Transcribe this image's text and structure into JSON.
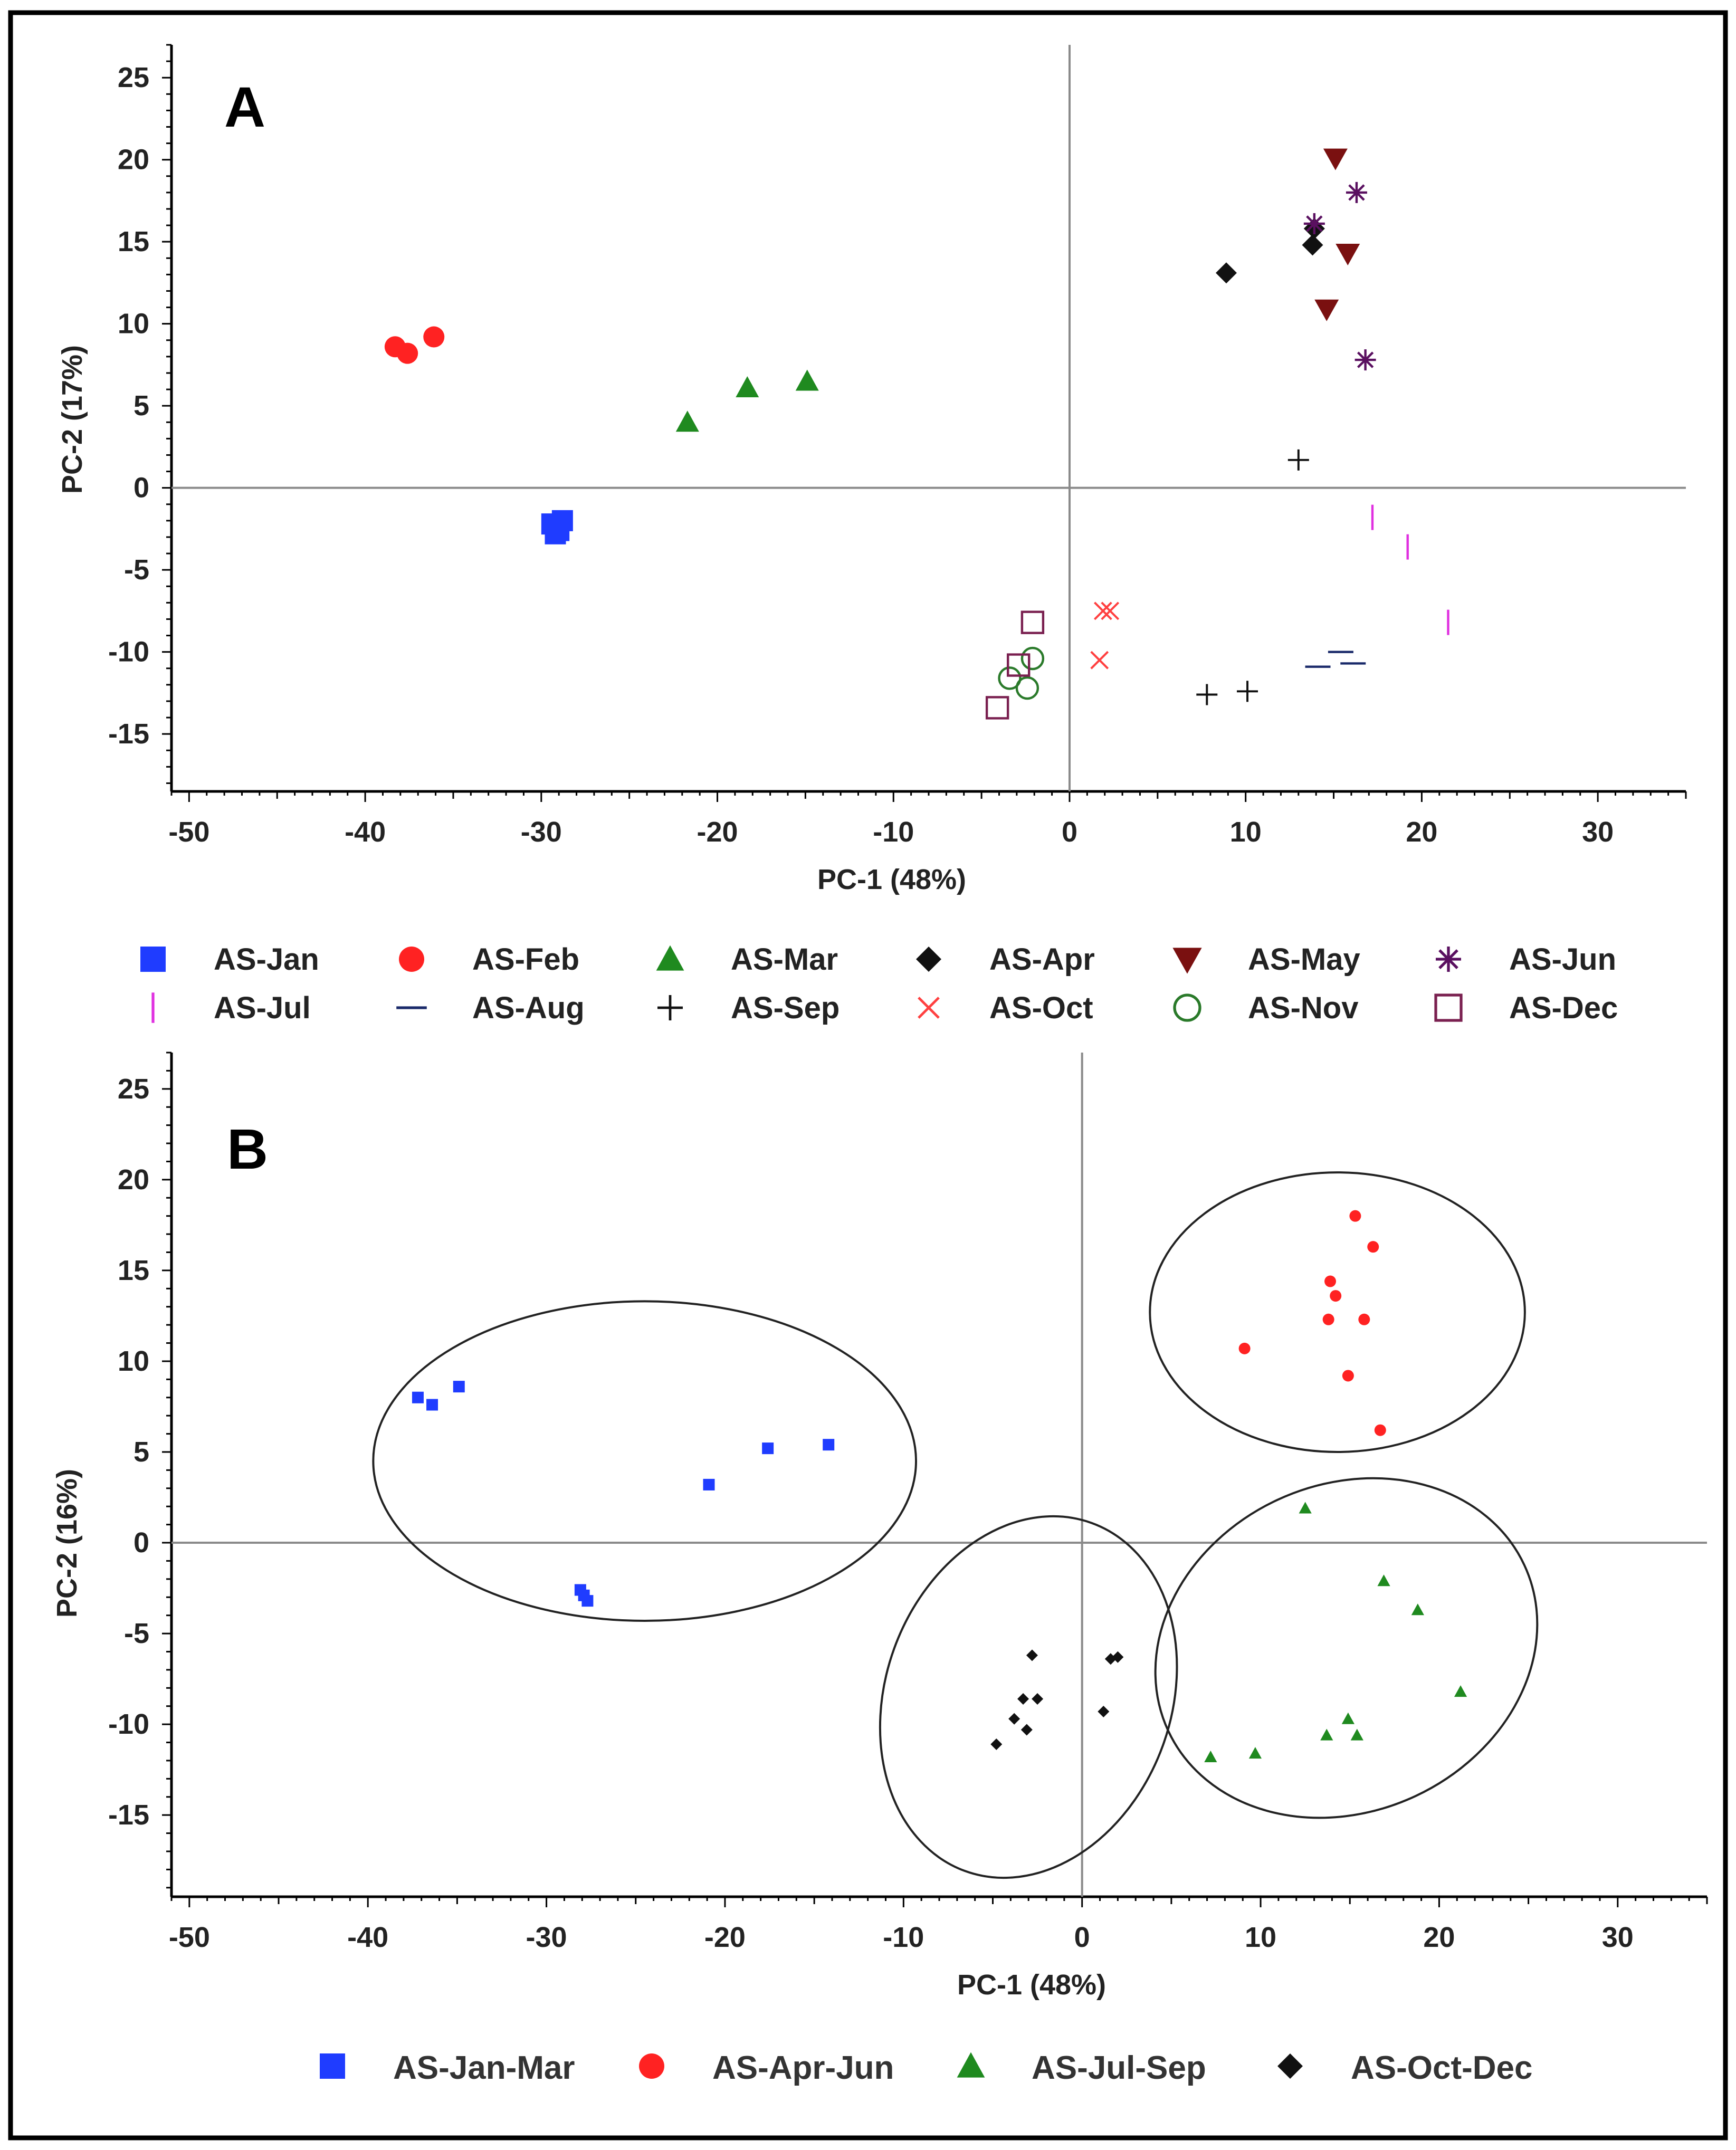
{
  "chart_data": [
    {
      "panel": "A",
      "type": "scatter",
      "xlabel": "PC-1 (48%)",
      "ylabel": "PC-2 (17%)",
      "xlim": [
        -51,
        35
      ],
      "ylim": [
        -18.5,
        27
      ],
      "xticks": [
        -50,
        -40,
        -30,
        -20,
        -10,
        0,
        10,
        20,
        30
      ],
      "yticks": [
        25,
        20,
        15,
        10,
        5,
        0,
        -5,
        -10,
        -15
      ],
      "zero_lines": true,
      "series": [
        {
          "name": "AS-Jan",
          "marker": "square",
          "color": "#1f3cff",
          "x": [
            -29.4,
            -29.0,
            -28.8,
            -29.2
          ],
          "y": [
            -2.2,
            -2.6,
            -2.0,
            -2.8
          ]
        },
        {
          "name": "AS-Feb",
          "marker": "circle",
          "color": "#ff2222",
          "x": [
            -38.3,
            -37.6,
            -36.1
          ],
          "y": [
            8.6,
            8.2,
            9.2
          ]
        },
        {
          "name": "AS-Mar",
          "marker": "triangle-up",
          "color": "#1f8a1f",
          "x": [
            -21.7,
            -18.3,
            -14.9
          ],
          "y": [
            4.0,
            6.1,
            6.5
          ]
        },
        {
          "name": "AS-Apr",
          "marker": "diamond",
          "color": "#111111",
          "x": [
            8.9,
            13.8,
            13.9
          ],
          "y": [
            13.1,
            14.8,
            15.8
          ]
        },
        {
          "name": "AS-May",
          "marker": "triangle-down",
          "color": "#7a1010",
          "x": [
            15.1,
            15.8,
            14.6
          ],
          "y": [
            20.1,
            14.3,
            10.9
          ]
        },
        {
          "name": "AS-Jun",
          "marker": "asterisk",
          "color": "#5a1060",
          "x": [
            13.9,
            16.3,
            16.8
          ],
          "y": [
            16.1,
            18.0,
            7.8
          ]
        },
        {
          "name": "AS-Jul",
          "marker": "vbar",
          "color": "#e030e0",
          "x": [
            17.2,
            19.2,
            21.5
          ],
          "y": [
            -1.8,
            -3.6,
            -8.2
          ]
        },
        {
          "name": "AS-Aug",
          "marker": "hbar",
          "color": "#1a2a6a",
          "x": [
            15.4,
            14.1,
            16.1
          ],
          "y": [
            -10.0,
            -10.9,
            -10.7
          ]
        },
        {
          "name": "AS-Sep",
          "marker": "plus",
          "color": "#111111",
          "x": [
            13.0,
            7.8,
            10.1
          ],
          "y": [
            1.7,
            -12.6,
            -12.4
          ]
        },
        {
          "name": "AS-Oct",
          "marker": "x",
          "color": "#ff4040",
          "x": [
            1.9,
            2.3,
            1.7
          ],
          "y": [
            -7.5,
            -7.5,
            -10.5
          ]
        },
        {
          "name": "AS-Nov",
          "marker": "circle-open",
          "color": "#2a7a2a",
          "x": [
            -2.1,
            -3.4,
            -2.4
          ],
          "y": [
            -10.4,
            -11.6,
            -12.2
          ]
        },
        {
          "name": "AS-Dec",
          "marker": "square-open",
          "color": "#7a2050",
          "x": [
            -2.1,
            -2.9,
            -4.1
          ],
          "y": [
            -8.2,
            -10.8,
            -13.4
          ]
        }
      ]
    },
    {
      "panel": "B",
      "type": "scatter",
      "xlabel": "PC-1 (48%)",
      "ylabel": "PC-2 (16%)",
      "xlim": [
        -51,
        35
      ],
      "ylim": [
        -19.5,
        27
      ],
      "xticks": [
        -50,
        -40,
        -30,
        -20,
        -10,
        0,
        10,
        20,
        30
      ],
      "yticks": [
        25,
        20,
        15,
        10,
        5,
        0,
        -5,
        -10,
        -15
      ],
      "zero_lines": true,
      "series": [
        {
          "name": "AS-Jan-Mar",
          "marker": "square",
          "color": "#1f3cff",
          "x": [
            -37.2,
            -36.4,
            -34.9,
            -20.9,
            -17.6,
            -14.2,
            -28.1,
            -27.9,
            -27.7
          ],
          "y": [
            8.0,
            7.6,
            8.6,
            3.2,
            5.2,
            5.4,
            -2.6,
            -2.9,
            -3.2
          ]
        },
        {
          "name": "AS-Apr-Jun",
          "marker": "circle",
          "color": "#ff2222",
          "x": [
            15.3,
            16.3,
            13.9,
            14.2,
            13.8,
            15.8,
            9.1,
            14.9,
            16.7
          ],
          "y": [
            18.0,
            16.3,
            14.4,
            13.6,
            12.3,
            12.3,
            10.7,
            9.2,
            6.2
          ]
        },
        {
          "name": "AS-Jul-Sep",
          "marker": "triangle-up",
          "color": "#1f8a1f",
          "x": [
            12.5,
            16.9,
            18.8,
            21.2,
            7.2,
            9.7,
            13.7,
            14.9,
            15.4
          ],
          "y": [
            1.9,
            -2.1,
            -3.7,
            -8.2,
            -11.8,
            -11.6,
            -10.6,
            -9.7,
            -10.6
          ]
        },
        {
          "name": "AS-Oct-Dec",
          "marker": "diamond",
          "color": "#111111",
          "x": [
            -2.8,
            1.6,
            2.0,
            -3.3,
            -2.5,
            -3.8,
            -3.1,
            -4.8,
            1.2
          ],
          "y": [
            -6.2,
            -6.4,
            -6.3,
            -8.6,
            -8.6,
            -9.7,
            -10.3,
            -11.1,
            -9.3
          ]
        }
      ],
      "ellipses": [
        {
          "group": "AS-Jan-Mar",
          "cx": -24.5,
          "cy": 4.5,
          "rx": 15.2,
          "ry": 8.8,
          "rotation_deg": 0
        },
        {
          "group": "AS-Apr-Jun",
          "cx": 14.3,
          "cy": 12.7,
          "rx": 10.5,
          "ry": 7.7,
          "rotation_deg": 0
        },
        {
          "group": "AS-Jul-Sep",
          "cx": 14.8,
          "cy": -5.8,
          "rx": 11.0,
          "ry": 9.0,
          "rotation_deg": -25
        },
        {
          "group": "AS-Oct-Dec",
          "cx": -3.0,
          "cy": -8.5,
          "rx": 8.0,
          "ry": 10.2,
          "rotation_deg": 20
        }
      ]
    }
  ]
}
